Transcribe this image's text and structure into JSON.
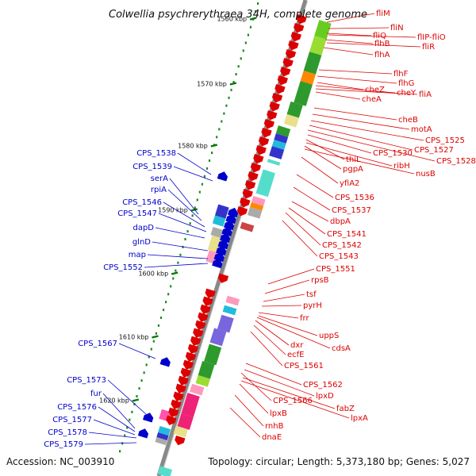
{
  "title": "Colwellia psychrerythraea 34H, complete genome",
  "footer": {
    "accession": "Accession: NC_003910",
    "topology": "Topology: circular; Length: 5,373,180 bp; Genes: 5,027"
  },
  "colors": {
    "forward_strand": "#0000cc",
    "reverse_strand": "#dd0000",
    "backbone": "#888888",
    "tick": "#007700"
  },
  "ruler": [
    {
      "label": "1560 kbp"
    },
    {
      "label": "1570 kbp"
    },
    {
      "label": "1580 kbp"
    },
    {
      "label": "1590 kbp"
    },
    {
      "label": "1600 kbp"
    },
    {
      "label": "1610 kbp"
    },
    {
      "label": "1620 kbp"
    }
  ],
  "labels_left": [
    "CPS_1538",
    "CPS_1539",
    "serA",
    "rpiA",
    "CPS_1546",
    "CPS_1547",
    "dapD",
    "glnD",
    "map",
    "CPS_1552",
    "CPS_1567",
    "CPS_1573",
    "fur",
    "CPS_1576",
    "CPS_1577",
    "CPS_1578",
    "CPS_1579"
  ],
  "labels_right": [
    "fliM",
    "fliN",
    "fliQ",
    "flIP-fliO",
    "flhB",
    "fliR",
    "flhA",
    "flhF",
    "flhG",
    "cheZ",
    "cheY",
    "fliA",
    "cheA",
    "cheB",
    "motA",
    "CPS_1525",
    "CPS_1527",
    "CPS_1528",
    "CPS_1530",
    "thiL",
    "ribH",
    "pgpA",
    "nusB",
    "yfiA2",
    "CPS_1536",
    "CPS_1537",
    "dbpA",
    "CPS_1541",
    "CPS_1542",
    "CPS_1543",
    "CPS_1551",
    "rpsB",
    "tsf",
    "pyrH",
    "frr",
    "uppS",
    "dxr",
    "cdsA",
    "ecfE",
    "CPS_1561",
    "CPS_1562",
    "lpxD",
    "CPS_1566",
    "fabZ",
    "lpxB",
    "lpxA",
    "rnhB",
    "dnaE"
  ]
}
